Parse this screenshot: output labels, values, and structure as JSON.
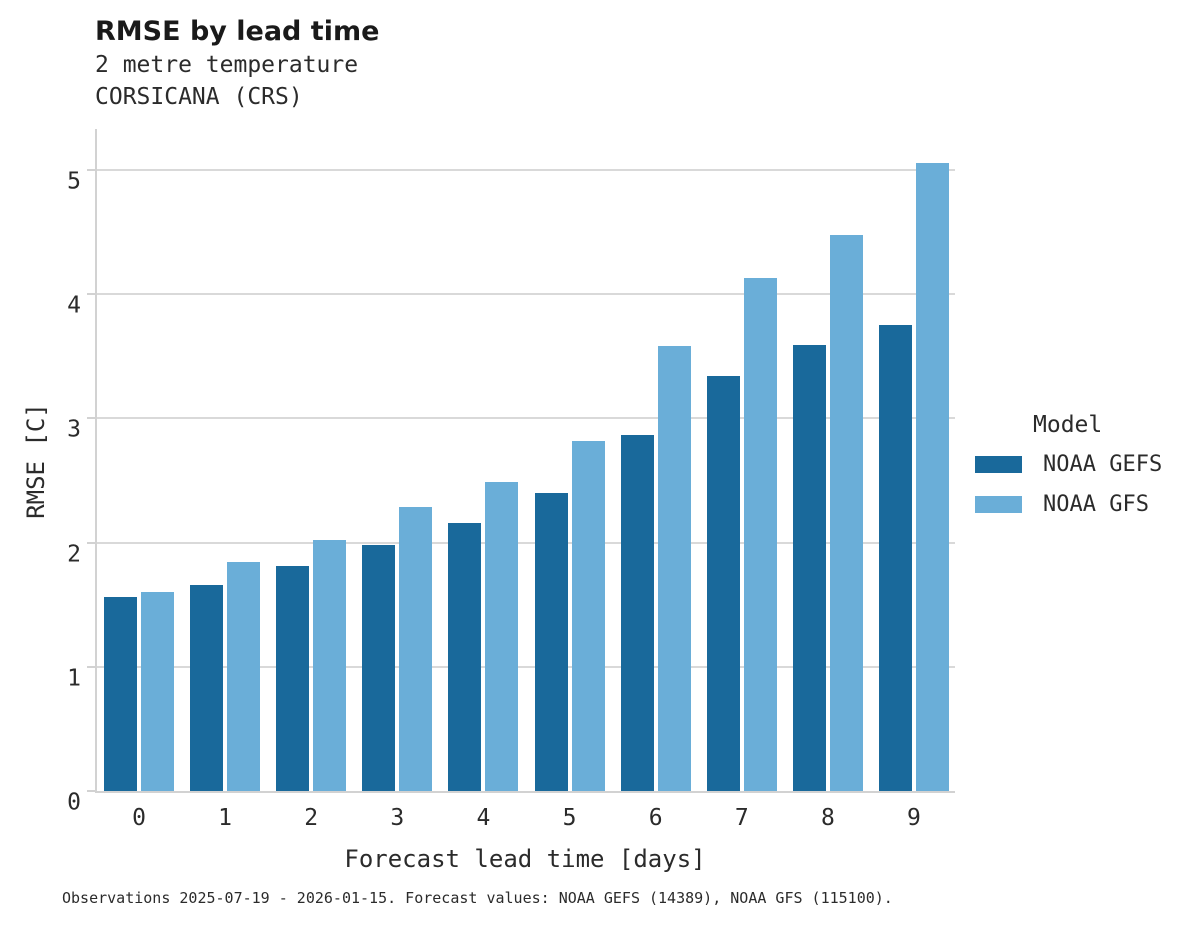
{
  "header": {
    "title": "RMSE by lead time",
    "subtitle_variable": "2 metre temperature",
    "subtitle_station": "CORSICANA (CRS)"
  },
  "chart_data": {
    "type": "bar",
    "categories": [
      "0",
      "1",
      "2",
      "3",
      "4",
      "5",
      "6",
      "7",
      "8",
      "9"
    ],
    "series": [
      {
        "name": "NOAA GEFS",
        "color": "#19699b",
        "values": [
          1.56,
          1.66,
          1.81,
          1.98,
          2.16,
          2.4,
          2.87,
          3.34,
          3.59,
          3.75
        ]
      },
      {
        "name": "NOAA GFS",
        "color": "#6aaed8",
        "values": [
          1.6,
          1.84,
          2.02,
          2.29,
          2.49,
          2.82,
          3.58,
          4.13,
          4.48,
          5.06
        ]
      }
    ],
    "title": "RMSE by lead time",
    "xlabel": "Forecast lead time [days]",
    "ylabel": "RMSE [C]",
    "ylim": [
      0,
      5.33
    ],
    "yticks": [
      0,
      1,
      2,
      3,
      4,
      5
    ],
    "grid": true,
    "legend_title": "Model",
    "legend_position": "right",
    "grid_color": "#d9d9d9",
    "spine_color": "#d2d2d2"
  },
  "footnote": "Observations 2025-07-19 - 2026-01-15. Forecast values: NOAA GEFS (14389), NOAA GFS (115100)."
}
